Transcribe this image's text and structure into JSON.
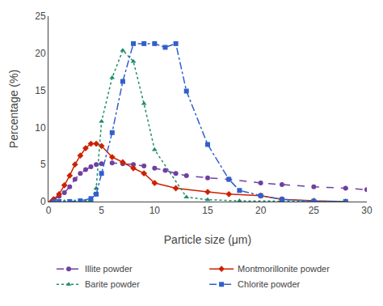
{
  "chart_data": {
    "type": "line",
    "xlabel": "Particle size (μm)",
    "ylabel": "Percentage (%)",
    "xlim": [
      0,
      30
    ],
    "ylim": [
      0,
      25
    ],
    "xticks": [
      0,
      5,
      10,
      15,
      20,
      25,
      30
    ],
    "yticks": [
      0,
      5,
      10,
      15,
      20,
      25
    ],
    "grid": false,
    "legend": "bottom",
    "series": [
      {
        "name": "Illite powder",
        "color": "#7040a0",
        "marker": "circle",
        "line_style": "dash",
        "x": [
          0.3,
          0.5,
          1,
          1.5,
          2,
          2.5,
          3,
          3.5,
          4,
          4.5,
          5,
          6,
          7,
          8,
          9,
          10,
          11,
          12,
          13,
          15,
          17,
          20,
          22,
          25,
          28,
          30
        ],
        "values": [
          0.0,
          0.3,
          0.7,
          1.2,
          2.0,
          3.0,
          3.8,
          4.3,
          4.7,
          5.0,
          5.1,
          5.2,
          5.1,
          5.0,
          4.8,
          4.5,
          4.2,
          3.8,
          3.5,
          3.2,
          3.0,
          2.5,
          2.3,
          2.0,
          1.8,
          1.6
        ]
      },
      {
        "name": "Montmorillonite powder",
        "color": "#cc2200",
        "marker": "diamond",
        "line_style": "solid",
        "x": [
          0.3,
          0.5,
          1,
          1.5,
          2,
          2.5,
          3,
          3.5,
          4,
          4.5,
          5,
          6,
          7,
          8,
          9,
          10,
          12,
          15,
          17,
          20,
          22,
          25,
          28
        ],
        "values": [
          0.0,
          0.3,
          1.0,
          2.2,
          3.5,
          5.0,
          6.2,
          7.2,
          7.8,
          7.8,
          7.5,
          6.0,
          5.3,
          4.5,
          3.8,
          2.5,
          1.8,
          1.3,
          1.0,
          0.8,
          0.3,
          0.1,
          0.0
        ]
      },
      {
        "name": "Barite powder",
        "color": "#1e8c6e",
        "marker": "triangle-up",
        "line_style": "dot",
        "x": [
          0.5,
          1,
          1.5,
          2,
          2.5,
          3,
          3.5,
          4,
          4.5,
          5,
          6,
          7,
          8,
          9,
          10,
          13,
          15,
          18,
          22,
          25,
          28
        ],
        "values": [
          0.0,
          0.0,
          0.0,
          0.0,
          0.0,
          0.0,
          0.0,
          0.15,
          1.8,
          10.8,
          16.7,
          20.4,
          18.9,
          13.2,
          7.0,
          0.6,
          0.25,
          0.1,
          0.05,
          0.02,
          0.0
        ]
      },
      {
        "name": "Chlorite powder",
        "color": "#3060cc",
        "marker": "square",
        "line_style": "dashdot",
        "x": [
          0.5,
          1,
          2,
          3,
          4,
          4.5,
          5,
          6,
          7,
          8,
          9,
          10,
          11,
          12,
          13,
          15,
          17,
          18,
          20,
          22,
          25,
          28
        ],
        "values": [
          0.0,
          0.0,
          0.0,
          0.1,
          0.4,
          1.0,
          3.8,
          9.3,
          16.2,
          21.3,
          21.3,
          21.3,
          20.8,
          21.3,
          14.9,
          7.7,
          3.0,
          1.5,
          0.8,
          0.3,
          0.05,
          0.0
        ]
      }
    ]
  }
}
